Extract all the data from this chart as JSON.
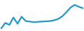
{
  "x": [
    0,
    1,
    2,
    3,
    4,
    5,
    6,
    7,
    8,
    9,
    10,
    11,
    12,
    13,
    14,
    15,
    16,
    17,
    18,
    19,
    20
  ],
  "y": [
    0.5,
    2.5,
    1.8,
    4.5,
    2.2,
    4.8,
    3.2,
    3.0,
    2.8,
    2.9,
    3.0,
    3.1,
    3.2,
    3.5,
    4.0,
    5.0,
    6.5,
    8.2,
    9.2,
    8.5,
    8.0
  ],
  "line_color": "#2196c8",
  "line_width": 1.6,
  "background_color": "#ffffff",
  "ylim": [
    -0.5,
    11
  ],
  "xlim": [
    -0.3,
    20.3
  ]
}
